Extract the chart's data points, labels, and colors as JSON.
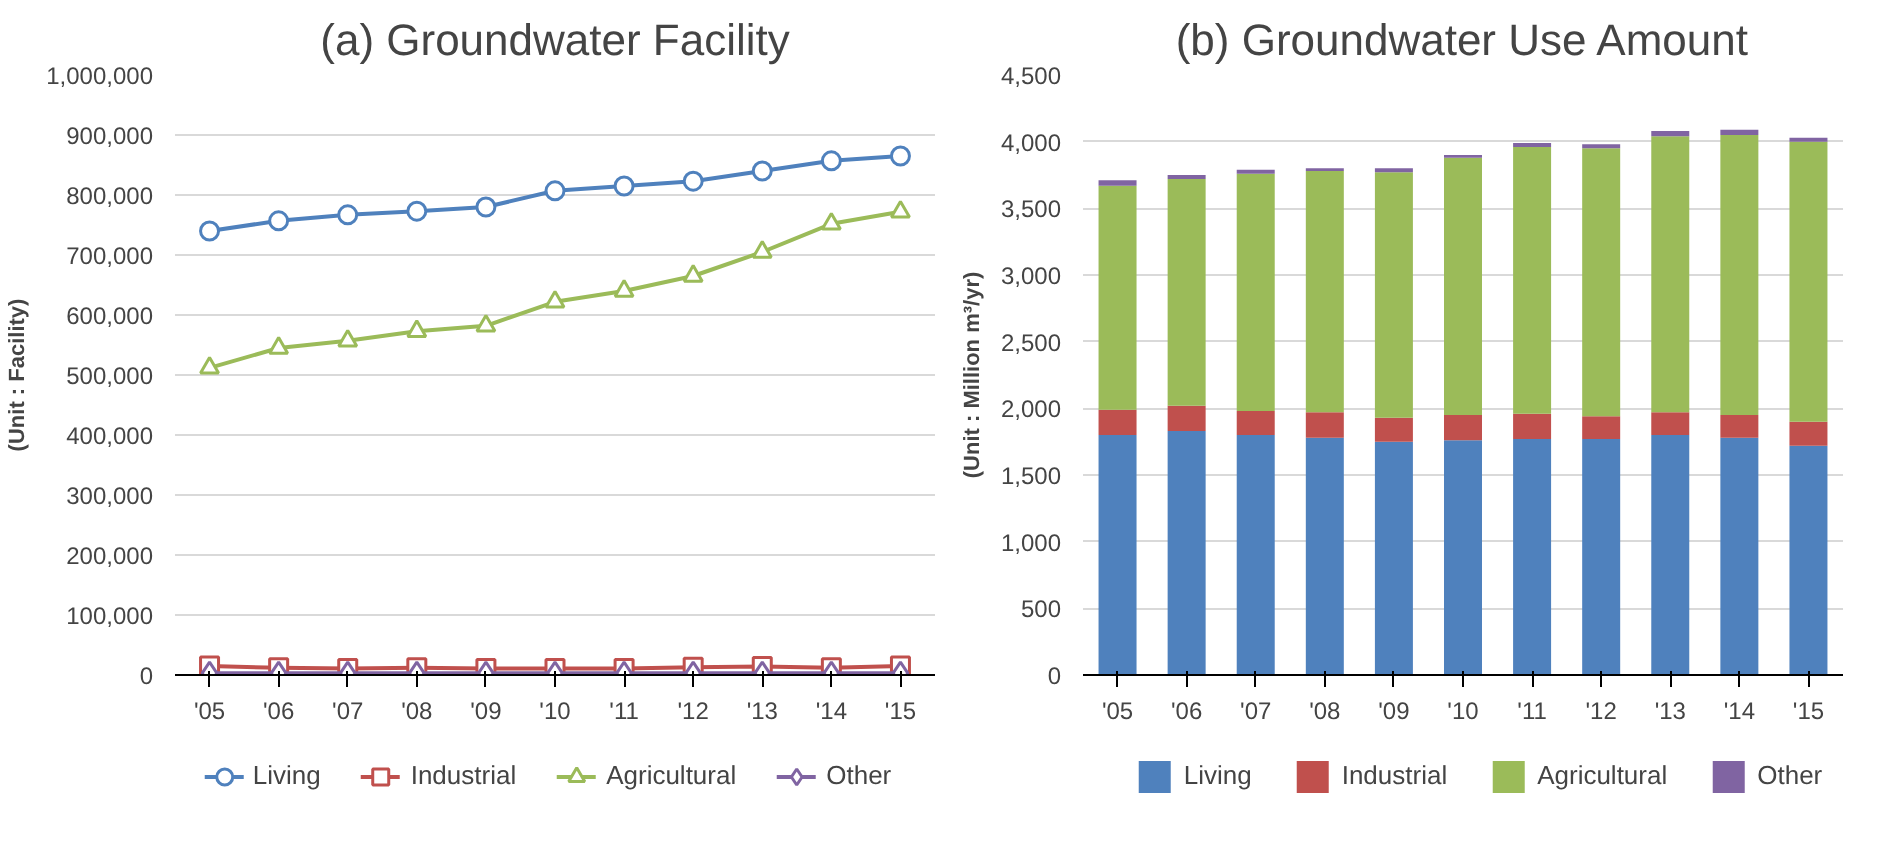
{
  "chart_data": [
    {
      "type": "line",
      "title": "(a) Groundwater Facility",
      "ylabel": "(Unit : Facility)",
      "categories": [
        "'05",
        "'06",
        "'07",
        "'08",
        "'09",
        "'10",
        "'11",
        "'12",
        "'13",
        "'14",
        "'15"
      ],
      "ylim": [
        0,
        1000000
      ],
      "yticks": [
        {
          "value": 0,
          "label": "0"
        },
        {
          "value": 100000,
          "label": "100,000"
        },
        {
          "value": 200000,
          "label": "200,000"
        },
        {
          "value": 300000,
          "label": "300,000"
        },
        {
          "value": 400000,
          "label": "400,000"
        },
        {
          "value": 500000,
          "label": "500,000"
        },
        {
          "value": 600000,
          "label": "600,000"
        },
        {
          "value": 700000,
          "label": "700,000"
        },
        {
          "value": 800000,
          "label": "800,000"
        },
        {
          "value": 900000,
          "label": "900,000"
        },
        {
          "value": 1000000,
          "label": "1,000,000"
        }
      ],
      "grid": "y",
      "legend": "bottom",
      "series": [
        {
          "name": "Living",
          "color": "#4f81bd",
          "marker": "circle",
          "values": [
            740000,
            757000,
            767000,
            773000,
            780000,
            807000,
            815000,
            823000,
            840000,
            857000,
            865000
          ]
        },
        {
          "name": "Industrial",
          "color": "#c0504d",
          "marker": "square",
          "values": [
            15000,
            12000,
            11000,
            12000,
            11000,
            11000,
            11000,
            13000,
            14000,
            12000,
            15000
          ]
        },
        {
          "name": "Agricultural",
          "color": "#9bbb59",
          "marker": "triangle",
          "values": [
            512000,
            545000,
            557000,
            573000,
            582000,
            622000,
            640000,
            665000,
            705000,
            752000,
            772000
          ]
        },
        {
          "name": "Other",
          "color": "#8064a2",
          "marker": "diamond",
          "values": [
            3000,
            3000,
            3000,
            3000,
            3000,
            3000,
            3000,
            3000,
            3000,
            3000,
            3000
          ]
        }
      ]
    },
    {
      "type": "bar",
      "stacked": true,
      "title": "(b) Groundwater Use Amount",
      "ylabel": "(Unit : Million m³/yr)",
      "categories": [
        "'05",
        "'06",
        "'07",
        "'08",
        "'09",
        "'10",
        "'11",
        "'12",
        "'13",
        "'14",
        "'15"
      ],
      "ylim": [
        0,
        4500
      ],
      "yticks": [
        {
          "value": 0,
          "label": "0"
        },
        {
          "value": 500,
          "label": "500"
        },
        {
          "value": 1000,
          "label": "1,000"
        },
        {
          "value": 1500,
          "label": "1,500"
        },
        {
          "value": 2000,
          "label": "2,000"
        },
        {
          "value": 2500,
          "label": "2,500"
        },
        {
          "value": 3000,
          "label": "3,000"
        },
        {
          "value": 3500,
          "label": "3,500"
        },
        {
          "value": 4000,
          "label": "4,000"
        },
        {
          "value": 4500,
          "label": "4,500"
        }
      ],
      "grid": "y",
      "legend": "bottom",
      "series": [
        {
          "name": "Living",
          "color": "#4f81bd",
          "values": [
            1800,
            1830,
            1800,
            1780,
            1750,
            1760,
            1770,
            1770,
            1800,
            1780,
            1720
          ]
        },
        {
          "name": "Industrial",
          "color": "#c0504d",
          "values": [
            190,
            190,
            180,
            190,
            180,
            190,
            190,
            170,
            170,
            170,
            180
          ]
        },
        {
          "name": "Agricultural",
          "color": "#9bbb59",
          "values": [
            1680,
            1700,
            1780,
            1810,
            1840,
            1930,
            2000,
            2010,
            2070,
            2100,
            2100
          ]
        },
        {
          "name": "Other",
          "color": "#8064a2",
          "values": [
            40,
            30,
            30,
            20,
            30,
            20,
            30,
            30,
            40,
            40,
            30
          ]
        }
      ]
    }
  ]
}
